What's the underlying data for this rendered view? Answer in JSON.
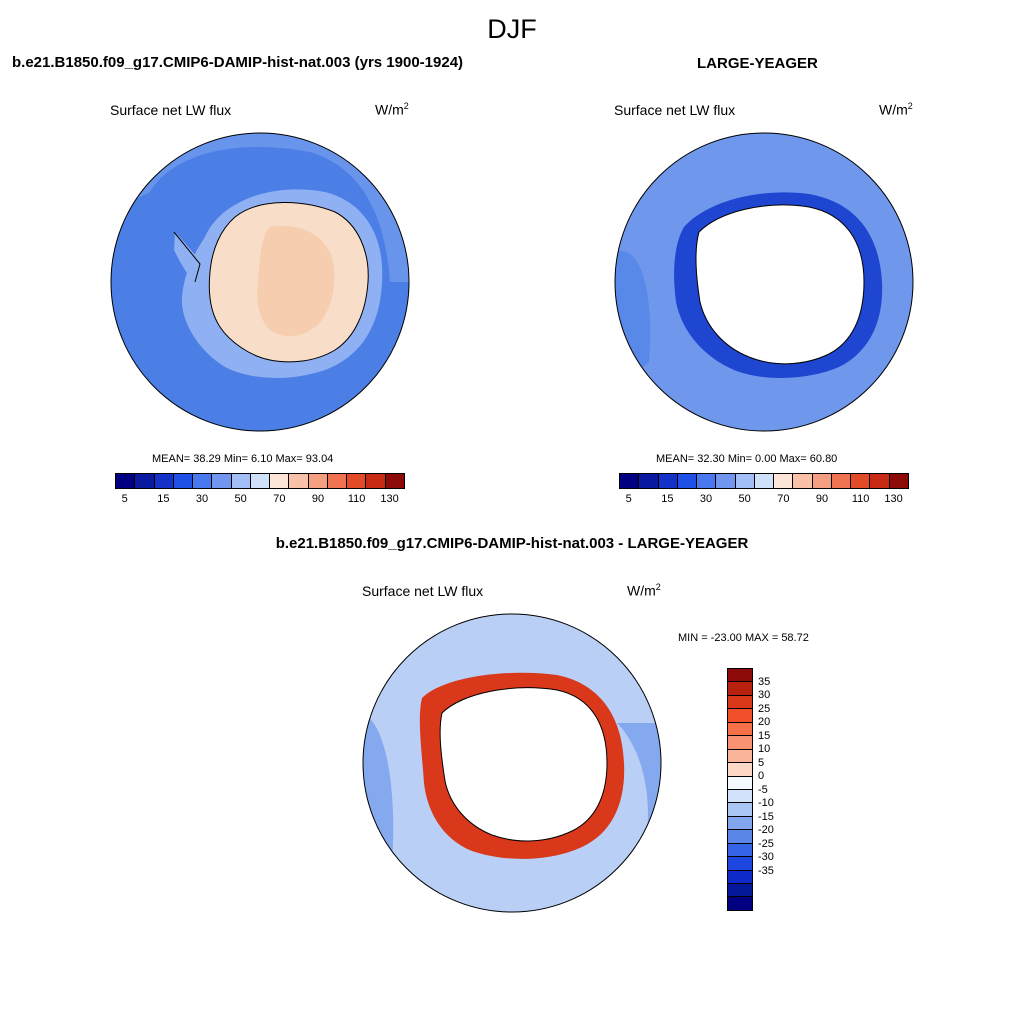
{
  "main_title": "DJF",
  "panels": [
    {
      "title": "b.e21.B1850.f09_g17.CMIP6-DAMIP-hist-nat.003 (yrs 1900-1924)",
      "variable": "Surface net LW flux",
      "units_base": "W/m",
      "units_exp": "2",
      "stats": "MEAN=  38.29  Min=   6.10  Max=  93.04",
      "mean": 38.29,
      "min": 6.1,
      "max": 93.04
    },
    {
      "title": "LARGE-YEAGER",
      "variable": "Surface net LW flux",
      "units_base": "W/m",
      "units_exp": "2",
      "stats": "MEAN=  32.30  Min=   0.00  Max=  60.80",
      "mean": 32.3,
      "min": 0.0,
      "max": 60.8
    },
    {
      "title": "b.e21.B1850.f09_g17.CMIP6-DAMIP-hist-nat.003 - LARGE-YEAGER",
      "variable": "Surface net LW flux",
      "units_base": "W/m",
      "units_exp": "2",
      "stats": "MIN = -23.00 MAX =  58.72",
      "min": -23.0,
      "max": 58.72
    }
  ],
  "colorbar_main": {
    "colors": [
      "#000080",
      "#0a1aa0",
      "#1432c8",
      "#1e50e6",
      "#4a78ee",
      "#7096f0",
      "#a2bef6",
      "#cfe0fa",
      "#fde6d8",
      "#f9c2a8",
      "#f59e80",
      "#ef7350",
      "#e24a28",
      "#c82a14",
      "#8c0a08"
    ],
    "tick_labels": [
      "5",
      "15",
      "30",
      "50",
      "70",
      "90",
      "110",
      "130"
    ]
  },
  "colorbar_diff": {
    "colors": [
      "#8c0a08",
      "#b82010",
      "#d9381a",
      "#f2502a",
      "#f67048",
      "#f89272",
      "#fab49a",
      "#fdd8c6",
      "#f4f8ff",
      "#d2e2fa",
      "#aac6f4",
      "#82a6ee",
      "#5a86ea",
      "#3664e8",
      "#1e46e0",
      "#0e2ac8",
      "#06189a",
      "#000080"
    ],
    "tick_labels": [
      "35",
      "30",
      "25",
      "20",
      "15",
      "10",
      "5",
      "0",
      "-5",
      "-10",
      "-15",
      "-20",
      "-25",
      "-30",
      "-35"
    ]
  },
  "map_colors": {
    "ocean_a": "#4b7fe6",
    "shelf_a": "#8fb0f2",
    "land_a": "#f8ddc9",
    "interior_a": "#f5caa9",
    "ocean_b": "#6f98ec",
    "ice_edge_b": "#1e46d0",
    "land_b": "#ffffff",
    "ocean_c": "#b9cff6",
    "ring_c": "#d9381a",
    "land_c": "#ffffff"
  }
}
